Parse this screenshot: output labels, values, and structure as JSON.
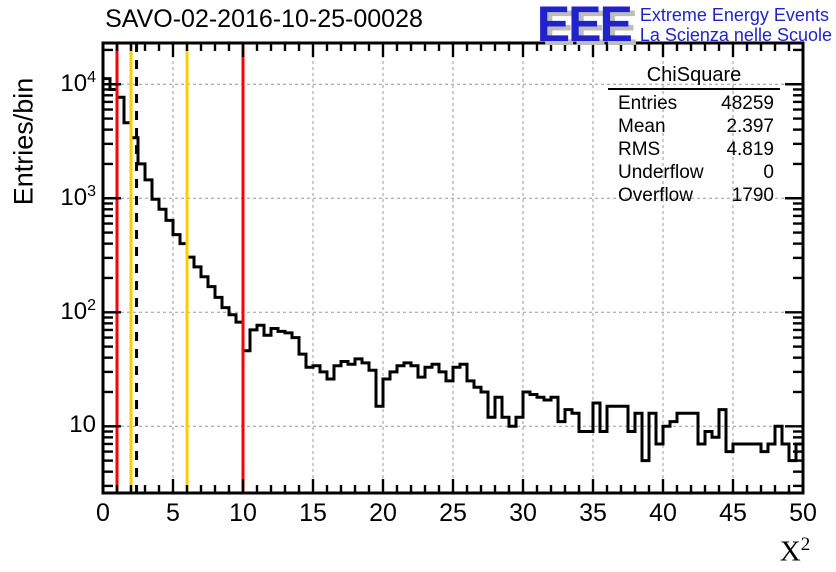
{
  "title": "SAVO-02-2016-10-25-00028",
  "logo": {
    "eee": "EEE",
    "line1": "Extreme Energy Events",
    "line2": "La Scienza nelle Scuole",
    "blue": "#2222cc",
    "shadow": "#bdbdbd"
  },
  "stats": {
    "title": "ChiSquare",
    "rows": [
      {
        "label": "Entries",
        "value": "48259"
      },
      {
        "label": "Mean",
        "value": "2.397"
      },
      {
        "label": "RMS",
        "value": "4.819"
      },
      {
        "label": "Underflow",
        "value": "0"
      },
      {
        "label": "Overflow",
        "value": "1790"
      }
    ]
  },
  "axes": {
    "y_title": "Entries/bin",
    "x_title_base": "X",
    "x_title_sup": "2",
    "x_ticks": [
      0,
      5,
      10,
      15,
      20,
      25,
      30,
      35,
      40,
      45,
      50
    ],
    "y_ticks": [
      {
        "v": 10,
        "base": "10",
        "exp": ""
      },
      {
        "v": 100,
        "base": "10",
        "exp": "2"
      },
      {
        "v": 1000,
        "base": "10",
        "exp": "3"
      },
      {
        "v": 10000,
        "base": "10",
        "exp": "4"
      }
    ]
  },
  "chart_data": {
    "type": "bar",
    "subtype": "step-histogram",
    "title": "SAVO-02-2016-10-25-00028",
    "xlabel": "X²",
    "ylabel": "Entries/bin",
    "xlim": [
      0,
      50
    ],
    "ylim": [
      2.6,
      23000
    ],
    "yscale": "log",
    "grid": true,
    "grid_color": "#999999",
    "line_color": "#000000",
    "bin_start": 0,
    "bin_width": 0.5,
    "values": [
      11200,
      9000,
      7700,
      4600,
      3400,
      2000,
      1450,
      980,
      800,
      640,
      480,
      400,
      305,
      250,
      205,
      168,
      135,
      110,
      95,
      82,
      46,
      70,
      77,
      63,
      72,
      68,
      66,
      60,
      43,
      33,
      34,
      30,
      26,
      34,
      37,
      35,
      39,
      36,
      31,
      15,
      26,
      30,
      34,
      36,
      34,
      27,
      33,
      35,
      30,
      25,
      33,
      35,
      25,
      22,
      20,
      12,
      18,
      12,
      10,
      12,
      20,
      19,
      18,
      17,
      18,
      11,
      14,
      13,
      9,
      9,
      16,
      9,
      15,
      15,
      15,
      9,
      13,
      5,
      13,
      7,
      10,
      11,
      13,
      13,
      13,
      7,
      9,
      8,
      14,
      6,
      7,
      7,
      7,
      7,
      6,
      7,
      10,
      7,
      5,
      7
    ],
    "marker_vlines": [
      {
        "x": 1,
        "color": "#ff0000",
        "style": "solid"
      },
      {
        "x": 2,
        "color": "#ffcc00",
        "style": "solid"
      },
      {
        "x": 2.397,
        "color": "#000000",
        "style": "dashed"
      },
      {
        "x": 6,
        "color": "#ffcc00",
        "style": "solid"
      },
      {
        "x": 10,
        "color": "#ff0000",
        "style": "solid"
      }
    ],
    "stats_box": {
      "Entries": 48259,
      "Mean": 2.397,
      "RMS": 4.819,
      "Underflow": 0,
      "Overflow": 1790
    },
    "legend": null
  }
}
